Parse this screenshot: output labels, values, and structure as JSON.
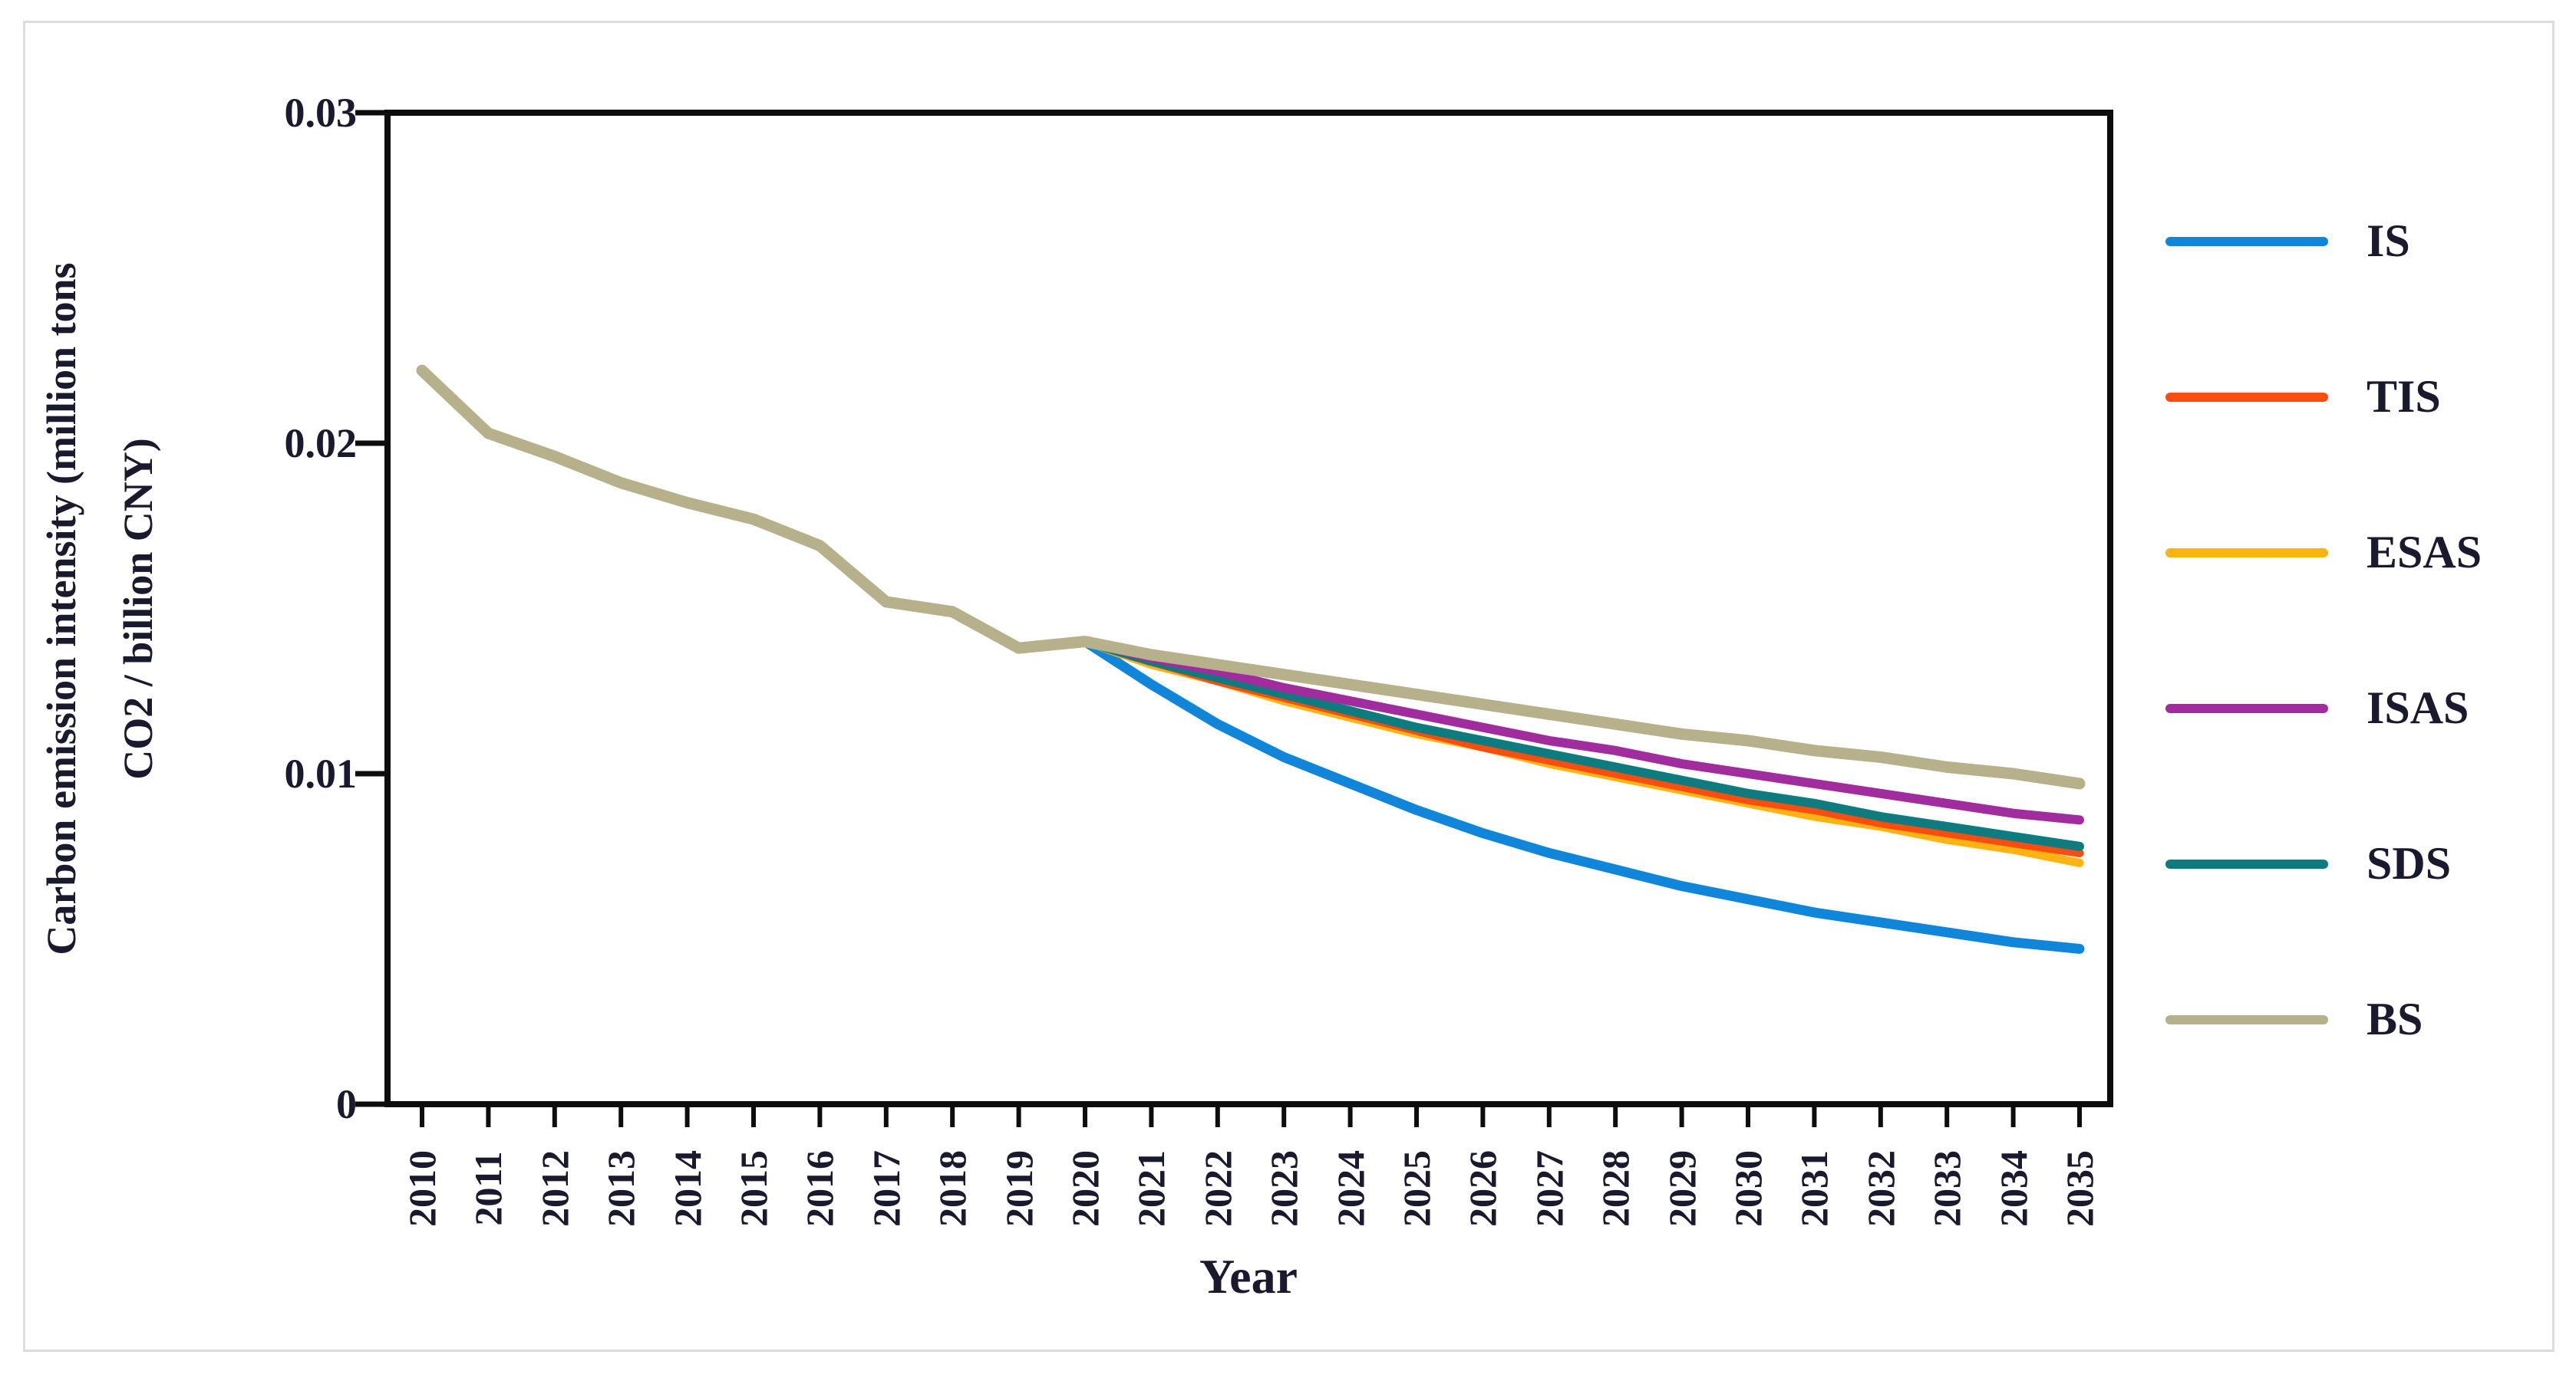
{
  "figure": {
    "background": "#ffffff",
    "frame_color": "#dcdcdc",
    "text_color": "#1a1a2e",
    "axis_color": "#0d0d0d"
  },
  "chart_data": {
    "type": "line",
    "title": "",
    "xlabel": "Year",
    "ylabel_line1": "Carbon emission intensity (million tons",
    "ylabel_line2": "CO2 / billion CNY)",
    "x": [
      2010,
      2011,
      2012,
      2013,
      2014,
      2015,
      2016,
      2017,
      2018,
      2019,
      2020,
      2021,
      2022,
      2023,
      2024,
      2025,
      2026,
      2027,
      2028,
      2029,
      2030,
      2031,
      2032,
      2033,
      2034,
      2035
    ],
    "yticks": [
      "0.03",
      "0.02",
      "0.01",
      "0"
    ],
    "ytick_values": [
      0.03,
      0.02,
      0.01,
      0
    ],
    "ylim": [
      0,
      0.03
    ],
    "grid": false,
    "legend_position": "right",
    "series": [
      {
        "name": "IS",
        "color": "#0f86d9",
        "start_year": 2020,
        "values": [
          0.014,
          0.0127,
          0.0115,
          0.0105,
          0.0097,
          0.0089,
          0.0082,
          0.0076,
          0.0071,
          0.0066,
          0.0062,
          0.0058,
          0.0055,
          0.0052,
          0.0049,
          0.0047
        ]
      },
      {
        "name": "TIS",
        "color": "#f94e0f",
        "start_year": 2020,
        "values": [
          0.014,
          0.0134,
          0.0128,
          0.0123,
          0.0118,
          0.0113,
          0.0108,
          0.0104,
          0.01,
          0.0096,
          0.0092,
          0.0089,
          0.0085,
          0.0082,
          0.0079,
          0.0076
        ]
      },
      {
        "name": "ESAS",
        "color": "#fdb311",
        "start_year": 2020,
        "values": [
          0.014,
          0.0133,
          0.0128,
          0.0122,
          0.0117,
          0.0112,
          0.0108,
          0.0103,
          0.0099,
          0.0095,
          0.0091,
          0.0087,
          0.0084,
          0.008,
          0.0077,
          0.0073
        ]
      },
      {
        "name": "ISAS",
        "color": "#a02c9e",
        "start_year": 2020,
        "values": [
          0.014,
          0.0135,
          0.0131,
          0.0126,
          0.0122,
          0.0118,
          0.0114,
          0.011,
          0.0107,
          0.0103,
          0.01,
          0.0097,
          0.0094,
          0.0091,
          0.0088,
          0.0086
        ]
      },
      {
        "name": "SDS",
        "color": "#0e7c7e",
        "start_year": 2020,
        "values": [
          0.014,
          0.0134,
          0.0129,
          0.0124,
          0.0119,
          0.0114,
          0.011,
          0.0106,
          0.0102,
          0.0098,
          0.0094,
          0.0091,
          0.0087,
          0.0084,
          0.0081,
          0.0078
        ]
      },
      {
        "name": "BS",
        "color": "#b6b08b",
        "start_year": 2010,
        "values": [
          0.0222,
          0.0203,
          0.0196,
          0.0188,
          0.0182,
          0.0177,
          0.0169,
          0.0152,
          0.0149,
          0.0138,
          0.014,
          0.0136,
          0.0133,
          0.013,
          0.0127,
          0.0124,
          0.0121,
          0.0118,
          0.0115,
          0.0112,
          0.011,
          0.0107,
          0.0105,
          0.0102,
          0.01,
          0.0097
        ]
      }
    ]
  }
}
